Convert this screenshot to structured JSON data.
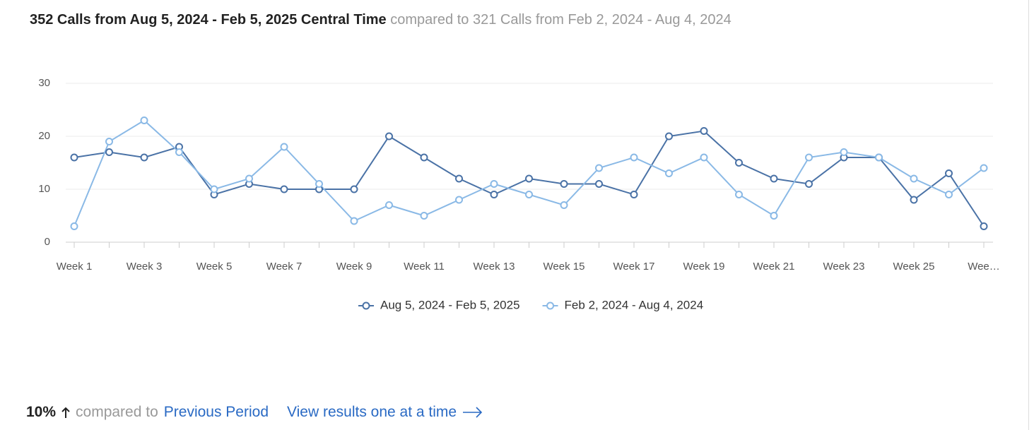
{
  "header": {
    "title": "352 Calls from Aug 5, 2024 - Feb 5, 2025 Central Time",
    "comparison": "compared to 321 Calls from Feb 2, 2024 - Aug 4, 2024"
  },
  "chart_data": {
    "type": "line",
    "categories": [
      "Week 1",
      null,
      "Week 3",
      null,
      "Week 5",
      null,
      "Week 7",
      null,
      "Week 9",
      null,
      "Week 11",
      null,
      "Week 13",
      null,
      "Week 15",
      null,
      "Week 17",
      null,
      "Week 19",
      null,
      "Week 21",
      null,
      "Week 23",
      null,
      "Week 25",
      null,
      "Wee…"
    ],
    "series": [
      {
        "name": "Aug 5, 2024 - Feb 5, 2025",
        "color": "#4a72a6",
        "values": [
          16,
          17,
          16,
          18,
          9,
          11,
          10,
          10,
          10,
          20,
          16,
          12,
          9,
          12,
          11,
          11,
          9,
          20,
          21,
          15,
          12,
          11,
          16,
          16,
          8,
          13,
          3
        ]
      },
      {
        "name": "Feb 2, 2024 - Aug 4, 2024",
        "color": "#8ab9e6",
        "values": [
          3,
          19,
          23,
          17,
          10,
          12,
          18,
          11,
          4,
          7,
          5,
          8,
          11,
          9,
          7,
          14,
          16,
          13,
          16,
          9,
          5,
          16,
          17,
          16,
          12,
          9,
          14
        ]
      }
    ],
    "ylim": [
      0,
      30
    ],
    "yticks": [
      0,
      10,
      20,
      30
    ],
    "grid": true,
    "legend": "bottom"
  },
  "footer": {
    "change": "10%",
    "compared_to": "compared to",
    "previous_period": "Previous Period",
    "view_results": "View results one at a time"
  }
}
